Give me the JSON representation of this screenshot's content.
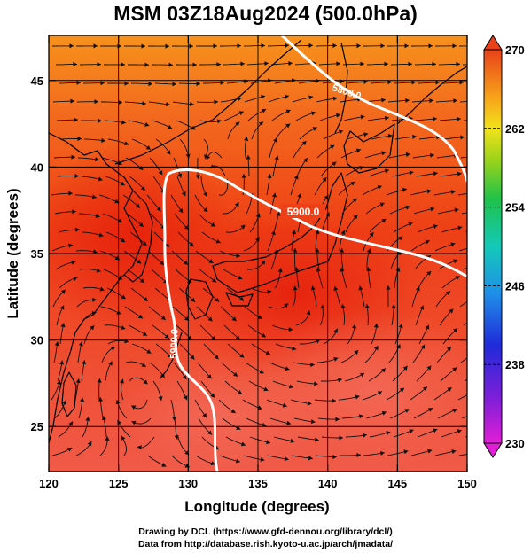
{
  "title": "MSM 03Z18Aug2024 (500.0hPa)",
  "map": {
    "xlabel": "Longitude (degrees)",
    "ylabel": "Latitude  (degrees)",
    "x_ticks": [
      "120",
      "125",
      "130",
      "135",
      "140",
      "145",
      "150"
    ],
    "x_tick_values": [
      120,
      125,
      130,
      135,
      140,
      145,
      150
    ],
    "y_ticks": [
      "25",
      "30",
      "35",
      "40",
      "45"
    ],
    "y_tick_values": [
      25,
      30,
      35,
      40,
      45
    ],
    "lon_range": [
      120,
      150
    ],
    "lat_range": [
      22.4,
      47.6
    ],
    "contour_labels": [
      "5900.0",
      "5900.0",
      "5800.0"
    ]
  },
  "colorbar": {
    "ticks": [
      "270",
      "262",
      "254",
      "246",
      "238",
      "230"
    ],
    "tick_values": [
      270,
      262,
      254,
      246,
      238,
      230
    ],
    "range": [
      230,
      270
    ]
  },
  "credits": {
    "line1": "Drawing by DCL (https://www.gfd-dennou.org/library/dcl/)",
    "line2": "Data from http://database.rish.kyoto-u.ac.jp/arch/jmadata/"
  }
}
